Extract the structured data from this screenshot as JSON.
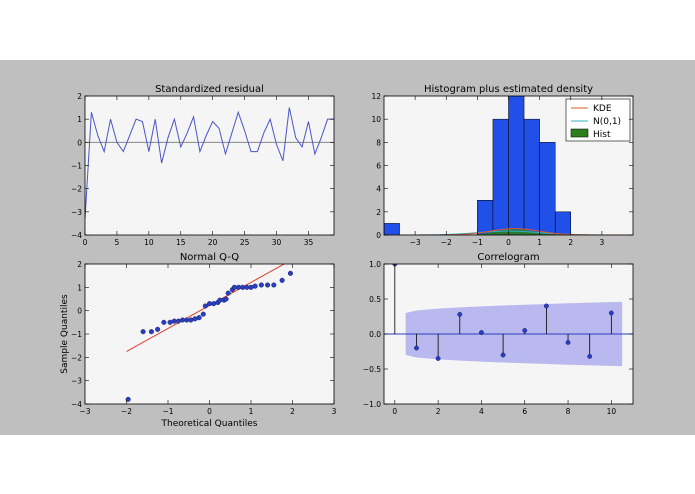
{
  "chart_data": [
    {
      "type": "line",
      "title": "Standardized residual",
      "xlabel": "",
      "ylabel": "",
      "xlim": [
        0,
        39
      ],
      "ylim": [
        -4,
        2
      ],
      "xticks": [
        "0",
        "5",
        "10",
        "15",
        "20",
        "25",
        "30",
        "35"
      ],
      "yticks": [
        "2",
        "1",
        "0",
        "−1",
        "−2",
        "−3",
        "−4"
      ],
      "x": [
        0,
        1,
        2,
        3,
        4,
        5,
        6,
        7,
        8,
        9,
        10,
        11,
        12,
        13,
        14,
        15,
        16,
        17,
        18,
        19,
        20,
        21,
        22,
        23,
        24,
        25,
        26,
        27,
        28,
        29,
        30,
        31,
        32,
        33,
        34,
        35,
        36,
        37,
        38,
        39
      ],
      "values": [
        -3.3,
        1.3,
        0.3,
        -0.4,
        1.0,
        0.0,
        -0.4,
        0.3,
        1.0,
        0.9,
        -0.4,
        1.0,
        -0.9,
        0.2,
        1.0,
        -0.2,
        0.4,
        1.1,
        -0.4,
        0.3,
        0.9,
        0.6,
        -0.5,
        0.4,
        1.3,
        0.5,
        -0.4,
        -0.4,
        0.4,
        1.0,
        -0.1,
        -0.8,
        1.5,
        0.2,
        -0.2,
        0.9,
        -0.5,
        0.2,
        1.0,
        1.0
      ]
    },
    {
      "type": "bar",
      "title": "Histogram plus estimated density",
      "xlim": [
        -4,
        4
      ],
      "ylim": [
        0,
        12
      ],
      "xticks": [
        "−3",
        "−2",
        "−1",
        "0",
        "1",
        "2",
        "3"
      ],
      "yticks": [
        "12",
        "10",
        "8",
        "6",
        "4",
        "2",
        "0"
      ],
      "bins": [
        [
          -4.0,
          -3.5,
          1
        ],
        [
          -1.0,
          -0.5,
          3
        ],
        [
          -0.5,
          0.0,
          10
        ],
        [
          0.0,
          0.5,
          12
        ],
        [
          0.5,
          1.0,
          10
        ],
        [
          1.0,
          1.5,
          8
        ],
        [
          1.5,
          2.0,
          2
        ]
      ],
      "legend": [
        "KDE",
        "N(0,1)",
        "Hist"
      ],
      "legend_position": "top-right",
      "colors": {
        "hist": "#2150e8",
        "kde": "#e05a2b",
        "normal": "#2fb0c8",
        "hist_legend": "#2e7d1f"
      }
    },
    {
      "type": "scatter",
      "title": "Normal Q-Q",
      "xlabel": "Theoretical Quantiles",
      "ylabel": "Sample Quantiles",
      "xlim": [
        -3,
        3
      ],
      "ylim": [
        -4,
        2
      ],
      "xticks": [
        "−3",
        "−2",
        "−1",
        "0",
        "1",
        "2",
        "3"
      ],
      "yticks": [
        "2",
        "1",
        "0",
        "−1",
        "−2",
        "−3",
        "−4"
      ],
      "points": [
        [
          -1.96,
          -3.8
        ],
        [
          -1.6,
          -0.9
        ],
        [
          -1.4,
          -0.9
        ],
        [
          -1.25,
          -0.8
        ],
        [
          -1.1,
          -0.5
        ],
        [
          -0.95,
          -0.5
        ],
        [
          -0.85,
          -0.45
        ],
        [
          -0.75,
          -0.45
        ],
        [
          -0.65,
          -0.4
        ],
        [
          -0.55,
          -0.4
        ],
        [
          -0.45,
          -0.4
        ],
        [
          -0.35,
          -0.35
        ],
        [
          -0.25,
          -0.3
        ],
        [
          -0.15,
          -0.15
        ],
        [
          -0.1,
          0.2
        ],
        [
          0.0,
          0.3
        ],
        [
          0.1,
          0.3
        ],
        [
          0.2,
          0.35
        ],
        [
          0.25,
          0.45
        ],
        [
          0.35,
          0.45
        ],
        [
          0.4,
          0.5
        ],
        [
          0.45,
          0.75
        ],
        [
          0.55,
          0.9
        ],
        [
          0.6,
          1.0
        ],
        [
          0.7,
          1.0
        ],
        [
          0.8,
          1.0
        ],
        [
          0.9,
          1.0
        ],
        [
          1.0,
          1.0
        ],
        [
          1.1,
          1.05
        ],
        [
          1.25,
          1.1
        ],
        [
          1.4,
          1.1
        ],
        [
          1.55,
          1.1
        ],
        [
          1.75,
          1.3
        ],
        [
          1.95,
          1.6
        ]
      ],
      "line": [
        [
          -2,
          -1.75
        ],
        [
          2,
          2.2
        ]
      ],
      "colors": {
        "points": "#2a3fbf",
        "line": "#e03a2a"
      }
    },
    {
      "type": "stem",
      "title": "Correlogram",
      "xlim": [
        -0.5,
        11
      ],
      "ylim": [
        -1.0,
        1.0
      ],
      "xticks": [
        "0",
        "2",
        "4",
        "6",
        "8",
        "10"
      ],
      "yticks": [
        "1.0",
        "0.5",
        "0.0",
        "−0.5",
        "−1.0"
      ],
      "x": [
        0,
        1,
        2,
        3,
        4,
        5,
        6,
        7,
        8,
        9,
        10
      ],
      "values": [
        1.0,
        -0.2,
        -0.35,
        0.28,
        0.02,
        -0.3,
        0.05,
        0.4,
        -0.12,
        -0.32,
        0.3
      ],
      "band": {
        "x": [
          0.5,
          10.5
        ],
        "upper": [
          0.3,
          0.46
        ],
        "lower": [
          -0.3,
          -0.46
        ]
      },
      "colors": {
        "band": "#b4b2ee",
        "stem": "#000000",
        "marker": "#2a3fbf"
      }
    }
  ]
}
